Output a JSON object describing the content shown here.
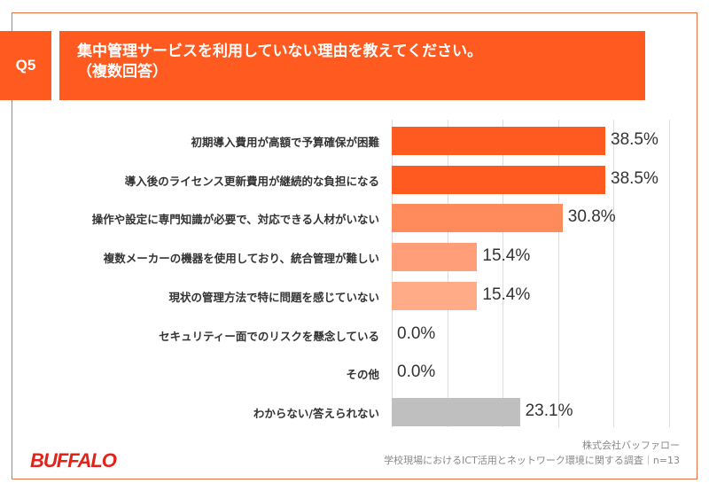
{
  "header": {
    "q_label": "Q5",
    "title_line1": "集中管理サービスを利用していない理由を教えてください。",
    "title_line2": "（複数回答）"
  },
  "chart_data": {
    "type": "bar",
    "orientation": "horizontal",
    "xlim": [
      0,
      50
    ],
    "grid": true,
    "categories": [
      "初期導入費用が高額で予算確保が困難",
      "導入後のライセンス更新費用が継続的な負担になる",
      "操作や設定に専門知識が必要で、対応できる人材がいない",
      "複数メーカーの機器を使用しており、統合管理が難しい",
      "現状の管理方法で特に問題を感じていない",
      "セキュリティー面でのリスクを懸念している",
      "その他",
      "わからない/答えられない"
    ],
    "values": [
      38.5,
      38.5,
      30.8,
      15.4,
      15.4,
      0.0,
      0.0,
      23.1
    ],
    "labels": [
      "38.5%",
      "38.5%",
      "30.8%",
      "15.4%",
      "15.4%",
      "0.0%",
      "0.0%",
      "23.1%"
    ],
    "colors": [
      "#ff5a1f",
      "#ff5a1f",
      "#ff8a5c",
      "#ff9e78",
      "#ffab88",
      "#ffab88",
      "#ffab88",
      "#bfbfbf"
    ]
  },
  "footer": {
    "company": "株式会社バッファロー",
    "survey": "学校現場におけるICT活用とネットワーク環境に関する調査｜n=13",
    "logo": "BUFFALO"
  }
}
